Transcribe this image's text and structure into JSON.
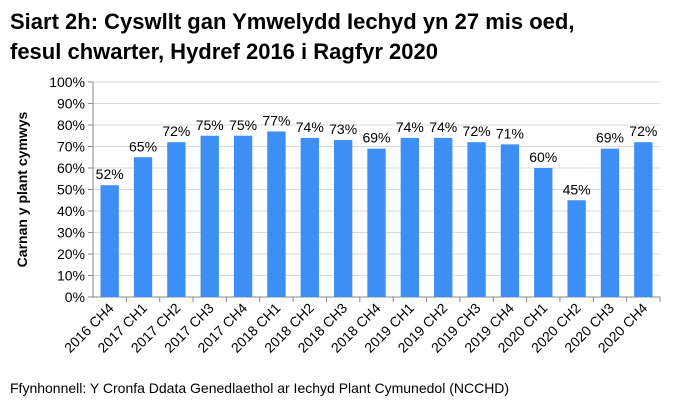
{
  "chart_data": {
    "type": "bar",
    "title_line1": "Siart 2h: Cyswllt gan Ymwelydd Iechyd yn 27 mis oed,",
    "title_line2": "fesul chwarter, Hydref 2016 i Ragfyr 2020",
    "xlabel": "",
    "ylabel": "Carnan y plant cymwys",
    "ylim": [
      0,
      100
    ],
    "ytick_step": 10,
    "y_format": "percent",
    "grid": true,
    "bar_color": "#3d8ef5",
    "categories": [
      "2016 CH4",
      "2017 CH1",
      "2017 CH2",
      "2017 CH3",
      "2017 CH4",
      "2018 CH1",
      "2018 CH2",
      "2018 CH3",
      "2018 CH4",
      "2019 CH1",
      "2019 CH2",
      "2019 CH3",
      "2019 CH4",
      "2020 CH1",
      "2020 CH2",
      "2020 CH3",
      "2020 CH4"
    ],
    "values": [
      52,
      65,
      72,
      75,
      75,
      77,
      74,
      73,
      69,
      74,
      74,
      72,
      71,
      60,
      45,
      69,
      72
    ],
    "data_labels": [
      "52%",
      "65%",
      "72%",
      "75%",
      "75%",
      "77%",
      "74%",
      "73%",
      "69%",
      "74%",
      "74%",
      "72%",
      "71%",
      "60%",
      "45%",
      "69%",
      "72%"
    ]
  },
  "source": "Ffynhonnell: Y Cronfa Ddata Genedlaethol ar Iechyd Plant Cymunedol (NCCHD)"
}
